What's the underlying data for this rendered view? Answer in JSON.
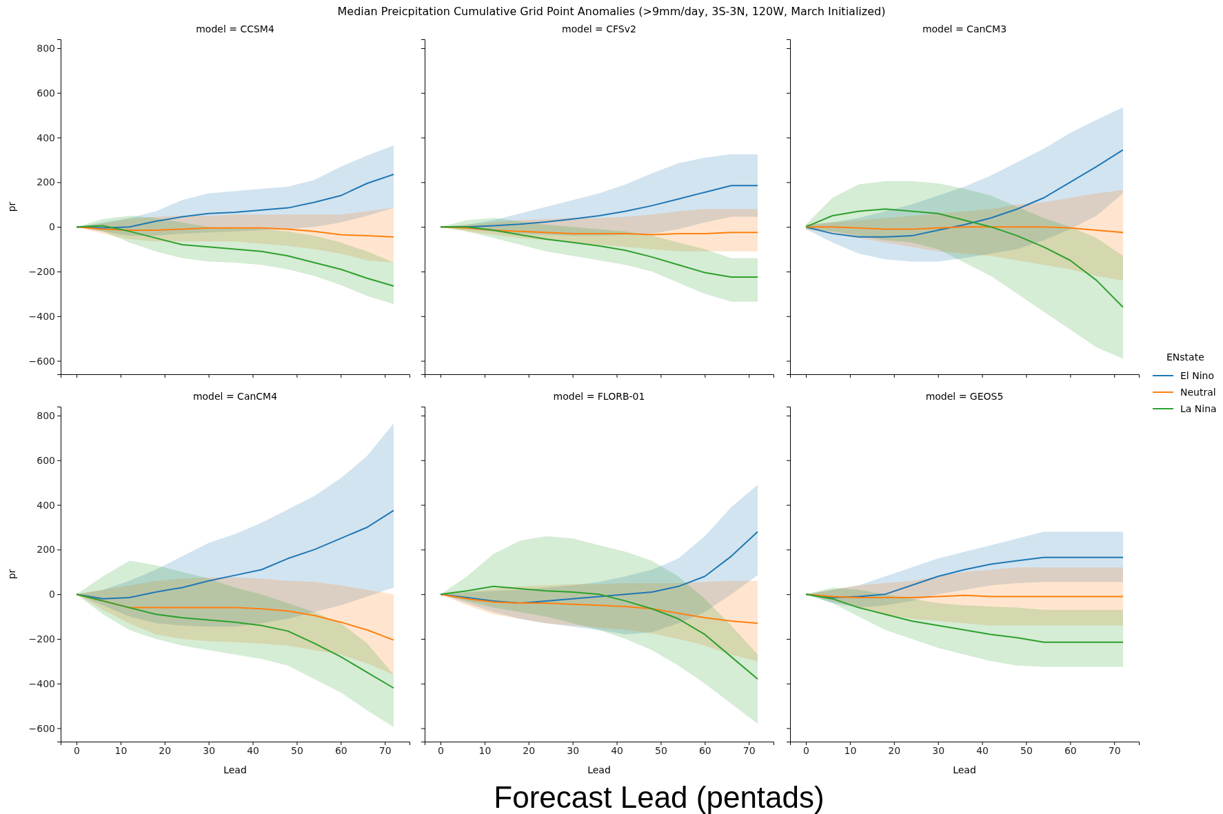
{
  "chart_data": [
    {
      "type": "line",
      "title": "model = CCSM4",
      "ylabel": "pr",
      "annotations": [
        "Median Preicpitation Cumulative Grid Point Anomalies (>9mm/day, 3S-3N, 120W, March Initialized)"
      ],
      "x": [
        0,
        6,
        12,
        18,
        24,
        30,
        36,
        42,
        48,
        54,
        60,
        66,
        72
      ],
      "xlim": [
        -3.6,
        75.6
      ],
      "xticks": [
        0,
        10,
        20,
        30,
        40,
        50,
        60,
        70
      ],
      "ylim": [
        -660,
        840
      ],
      "yticks": [
        -600,
        -400,
        -200,
        0,
        200,
        400,
        600,
        800
      ],
      "tick_labels": "y",
      "grid": false,
      "series": [
        {
          "color": "#1f77b4",
          "values": [
            0,
            -5,
            0,
            25,
            45,
            60,
            65,
            75,
            85,
            110,
            140,
            195,
            235
          ],
          "lower": [
            0,
            -20,
            -40,
            -40,
            -30,
            -25,
            -20,
            -15,
            -10,
            0,
            20,
            50,
            85
          ],
          "upper": [
            0,
            20,
            40,
            70,
            120,
            150,
            160,
            170,
            180,
            210,
            270,
            320,
            365
          ]
        },
        {
          "color": "#ff7f0e",
          "values": [
            0,
            -10,
            -15,
            -15,
            -10,
            -5,
            -5,
            -5,
            -10,
            -20,
            -35,
            -40,
            -45
          ],
          "lower": [
            0,
            -30,
            -55,
            -65,
            -65,
            -65,
            -65,
            -75,
            -85,
            -100,
            -120,
            -150,
            -160
          ],
          "upper": [
            0,
            15,
            35,
            45,
            50,
            50,
            55,
            55,
            55,
            55,
            55,
            70,
            85
          ]
        },
        {
          "color": "#2ca02c",
          "values": [
            0,
            5,
            -20,
            -50,
            -80,
            -90,
            -100,
            -110,
            -130,
            -160,
            -190,
            -230,
            -265
          ],
          "lower": [
            0,
            -20,
            -70,
            -110,
            -140,
            -155,
            -160,
            -170,
            -190,
            -220,
            -260,
            -310,
            -345
          ],
          "upper": [
            0,
            35,
            50,
            40,
            20,
            0,
            -5,
            -10,
            -20,
            -40,
            -70,
            -110,
            -160
          ]
        }
      ]
    },
    {
      "type": "line",
      "title": "model = CFSv2",
      "x": [
        0,
        6,
        12,
        18,
        24,
        30,
        36,
        42,
        48,
        54,
        60,
        66,
        72
      ],
      "xlim": [
        -3.6,
        75.6
      ],
      "xticks": [
        0,
        10,
        20,
        30,
        40,
        50,
        60,
        70
      ],
      "ylim": [
        -660,
        840
      ],
      "yticks": [
        -600,
        -400,
        -200,
        0,
        200,
        400,
        600,
        800
      ],
      "tick_labels": false,
      "grid": false,
      "series": [
        {
          "color": "#1f77b4",
          "values": [
            0,
            0,
            5,
            12,
            22,
            35,
            50,
            70,
            95,
            125,
            155,
            185,
            185
          ],
          "lower": [
            0,
            -10,
            -20,
            -30,
            -35,
            -40,
            -40,
            -35,
            -30,
            -10,
            20,
            45,
            45
          ],
          "upper": [
            0,
            10,
            30,
            60,
            90,
            120,
            150,
            190,
            240,
            285,
            310,
            325,
            325
          ]
        },
        {
          "color": "#ff7f0e",
          "values": [
            0,
            -5,
            -15,
            -20,
            -25,
            -30,
            -30,
            -30,
            -35,
            -30,
            -30,
            -25,
            -25
          ],
          "lower": [
            0,
            -20,
            -35,
            -50,
            -60,
            -70,
            -80,
            -90,
            -100,
            -110,
            -110,
            -110,
            -110
          ],
          "upper": [
            0,
            10,
            20,
            30,
            35,
            40,
            40,
            45,
            55,
            70,
            80,
            80,
            80
          ]
        },
        {
          "color": "#2ca02c",
          "values": [
            0,
            0,
            -15,
            -35,
            -55,
            -70,
            -85,
            -105,
            -135,
            -170,
            -205,
            -225,
            -225
          ],
          "lower": [
            0,
            -20,
            -50,
            -80,
            -110,
            -130,
            -150,
            -170,
            -200,
            -250,
            -300,
            -335,
            -335
          ],
          "upper": [
            0,
            30,
            40,
            25,
            10,
            0,
            -10,
            -20,
            -40,
            -70,
            -100,
            -140,
            -140
          ]
        }
      ]
    },
    {
      "type": "line",
      "title": "model = CanCM3",
      "legend_title": "ENstate",
      "legend": "right",
      "x": [
        0,
        6,
        12,
        18,
        24,
        30,
        36,
        42,
        48,
        54,
        60,
        66,
        72
      ],
      "xlim": [
        -3.6,
        75.6
      ],
      "xticks": [
        0,
        10,
        20,
        30,
        40,
        50,
        60,
        70
      ],
      "ylim": [
        -660,
        840
      ],
      "yticks": [
        -600,
        -400,
        -200,
        0,
        200,
        400,
        600,
        800
      ],
      "tick_labels": false,
      "grid": false,
      "series": [
        {
          "name": "El Nino",
          "color": "#1f77b4",
          "values": [
            0,
            -30,
            -45,
            -45,
            -40,
            -15,
            10,
            40,
            80,
            130,
            200,
            270,
            345
          ],
          "lower": [
            -10,
            -70,
            -120,
            -145,
            -155,
            -155,
            -140,
            -120,
            -100,
            -60,
            -10,
            50,
            150
          ],
          "upper": [
            10,
            20,
            40,
            70,
            100,
            140,
            180,
            230,
            290,
            350,
            420,
            480,
            535
          ]
        },
        {
          "name": "Neutral",
          "color": "#ff7f0e",
          "values": [
            0,
            0,
            -5,
            -10,
            -10,
            -5,
            0,
            0,
            0,
            0,
            -5,
            -15,
            -25
          ],
          "lower": [
            -10,
            -30,
            -50,
            -70,
            -90,
            -110,
            -120,
            -130,
            -150,
            -170,
            -190,
            -220,
            -240
          ],
          "upper": [
            10,
            20,
            30,
            40,
            50,
            60,
            70,
            80,
            100,
            110,
            130,
            150,
            165
          ]
        },
        {
          "name": "La Nina",
          "color": "#2ca02c",
          "values": [
            0,
            50,
            70,
            80,
            70,
            60,
            30,
            0,
            -40,
            -90,
            -150,
            -240,
            -360
          ],
          "lower": [
            -10,
            -20,
            -40,
            -60,
            -70,
            -100,
            -160,
            -220,
            -300,
            -380,
            -460,
            -540,
            -590
          ],
          "upper": [
            10,
            130,
            190,
            205,
            205,
            195,
            170,
            140,
            90,
            40,
            0,
            -50,
            -130
          ]
        }
      ]
    },
    {
      "type": "line",
      "title": "model = CanCM4",
      "xlabel": "Lead",
      "ylabel": "pr",
      "x": [
        0,
        6,
        12,
        18,
        24,
        30,
        36,
        42,
        48,
        54,
        60,
        66,
        72
      ],
      "xlim": [
        -3.6,
        75.6
      ],
      "xticks": [
        0,
        10,
        20,
        30,
        40,
        50,
        60,
        70
      ],
      "ylim": [
        -660,
        840
      ],
      "yticks": [
        -600,
        -400,
        -200,
        0,
        200,
        400,
        600,
        800
      ],
      "grid": false,
      "series": [
        {
          "color": "#1f77b4",
          "values": [
            0,
            -20,
            -15,
            10,
            30,
            60,
            85,
            110,
            160,
            200,
            250,
            300,
            375
          ],
          "lower": [
            0,
            -50,
            -100,
            -130,
            -140,
            -145,
            -145,
            -130,
            -110,
            -80,
            -50,
            -10,
            30
          ],
          "upper": [
            0,
            20,
            60,
            110,
            170,
            230,
            270,
            320,
            380,
            440,
            520,
            620,
            765
          ]
        },
        {
          "color": "#ff7f0e",
          "values": [
            0,
            -30,
            -60,
            -60,
            -60,
            -60,
            -60,
            -65,
            -75,
            -95,
            -125,
            -160,
            -205
          ],
          "lower": [
            0,
            -70,
            -130,
            -180,
            -200,
            -210,
            -215,
            -220,
            -230,
            -250,
            -270,
            -310,
            -360
          ],
          "upper": [
            0,
            20,
            40,
            60,
            70,
            75,
            75,
            70,
            60,
            55,
            40,
            20,
            0
          ]
        },
        {
          "color": "#2ca02c",
          "values": [
            0,
            -30,
            -60,
            -90,
            -105,
            -115,
            -125,
            -140,
            -165,
            -220,
            -280,
            -350,
            -420
          ],
          "lower": [
            0,
            -90,
            -160,
            -200,
            -230,
            -250,
            -270,
            -290,
            -320,
            -380,
            -440,
            -520,
            -595
          ],
          "upper": [
            0,
            80,
            150,
            130,
            100,
            70,
            30,
            0,
            -40,
            -80,
            -130,
            -220,
            -360
          ]
        }
      ]
    },
    {
      "type": "line",
      "title": "model = FLORB-01",
      "xlabel": "Lead",
      "annotations": [
        "Forecast Lead (pentads)"
      ],
      "x": [
        0,
        6,
        12,
        18,
        24,
        30,
        36,
        42,
        48,
        54,
        60,
        66,
        72
      ],
      "xlim": [
        -3.6,
        75.6
      ],
      "xticks": [
        0,
        10,
        20,
        30,
        40,
        50,
        60,
        70
      ],
      "ylim": [
        -660,
        840
      ],
      "yticks": [
        -600,
        -400,
        -200,
        0,
        200,
        400,
        600,
        800
      ],
      "tick_labels": "x",
      "grid": false,
      "series": [
        {
          "color": "#1f77b4",
          "values": [
            0,
            -15,
            -30,
            -40,
            -30,
            -20,
            -10,
            0,
            10,
            35,
            80,
            170,
            280
          ],
          "lower": [
            0,
            -40,
            -80,
            -110,
            -130,
            -145,
            -160,
            -180,
            -170,
            -130,
            -80,
            0,
            85
          ],
          "upper": [
            0,
            10,
            15,
            20,
            30,
            40,
            55,
            80,
            110,
            160,
            260,
            390,
            490
          ]
        },
        {
          "color": "#ff7f0e",
          "values": [
            0,
            -20,
            -35,
            -40,
            -40,
            -45,
            -50,
            -55,
            -65,
            -85,
            -105,
            -120,
            -130
          ],
          "lower": [
            0,
            -50,
            -90,
            -110,
            -130,
            -140,
            -150,
            -160,
            -175,
            -200,
            -230,
            -270,
            -300
          ],
          "upper": [
            0,
            10,
            25,
            35,
            40,
            45,
            45,
            50,
            50,
            50,
            55,
            60,
            60
          ]
        },
        {
          "color": "#2ca02c",
          "values": [
            0,
            15,
            35,
            25,
            15,
            10,
            0,
            -30,
            -65,
            -110,
            -180,
            -280,
            -380
          ],
          "lower": [
            0,
            -30,
            -60,
            -80,
            -100,
            -130,
            -160,
            -200,
            -250,
            -320,
            -400,
            -490,
            -580
          ],
          "upper": [
            0,
            80,
            180,
            240,
            260,
            250,
            220,
            190,
            150,
            80,
            -20,
            -140,
            -270
          ]
        }
      ]
    },
    {
      "type": "line",
      "title": "model = GEOS5",
      "xlabel": "Lead",
      "x": [
        0,
        6,
        12,
        18,
        24,
        30,
        36,
        42,
        48,
        54,
        60,
        66,
        72
      ],
      "xlim": [
        -3.6,
        75.6
      ],
      "xticks": [
        0,
        10,
        20,
        30,
        40,
        50,
        60,
        70
      ],
      "ylim": [
        -660,
        840
      ],
      "yticks": [
        -600,
        -400,
        -200,
        0,
        200,
        400,
        600,
        800
      ],
      "tick_labels": "x",
      "grid": false,
      "series": [
        {
          "color": "#1f77b4",
          "values": [
            0,
            -15,
            -10,
            0,
            40,
            80,
            110,
            135,
            150,
            165,
            165,
            165,
            165
          ],
          "lower": [
            0,
            -40,
            -60,
            -50,
            -30,
            0,
            20,
            40,
            50,
            55,
            55,
            55,
            55
          ],
          "upper": [
            0,
            20,
            40,
            80,
            120,
            160,
            190,
            220,
            250,
            280,
            280,
            280,
            280
          ]
        },
        {
          "color": "#ff7f0e",
          "values": [
            0,
            -10,
            -15,
            -15,
            -15,
            -10,
            -5,
            -10,
            -10,
            -10,
            -10,
            -10,
            -10
          ],
          "lower": [
            0,
            -30,
            -60,
            -90,
            -110,
            -120,
            -130,
            -140,
            -140,
            -140,
            -140,
            -140,
            -140
          ],
          "upper": [
            0,
            20,
            40,
            50,
            60,
            80,
            100,
            110,
            120,
            120,
            120,
            120,
            120
          ]
        },
        {
          "color": "#2ca02c",
          "values": [
            0,
            -20,
            -60,
            -90,
            -120,
            -140,
            -160,
            -180,
            -195,
            -215,
            -215,
            -215,
            -215
          ],
          "lower": [
            0,
            -40,
            -100,
            -160,
            -200,
            -240,
            -270,
            -300,
            -320,
            -325,
            -325,
            -325,
            -325
          ],
          "upper": [
            0,
            30,
            20,
            0,
            -20,
            -40,
            -50,
            -55,
            -60,
            -70,
            -70,
            -70,
            -70
          ]
        }
      ]
    }
  ]
}
